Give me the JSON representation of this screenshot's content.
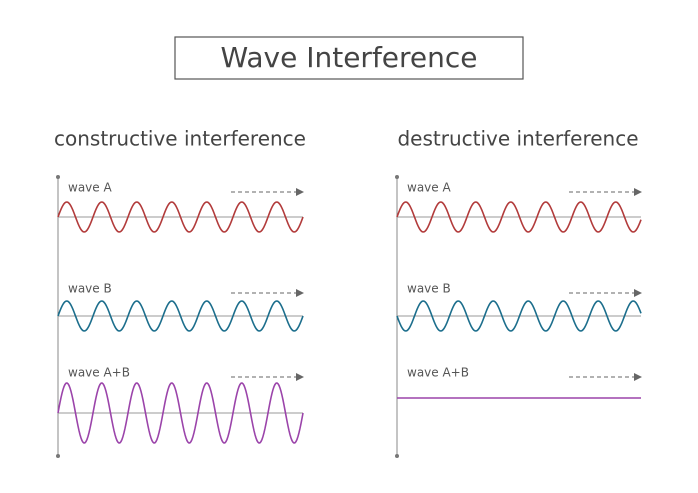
{
  "title": "Wave Interference",
  "panels": [
    {
      "title": "constructive interference",
      "waves": [
        {
          "label": "wave A"
        },
        {
          "label": "wave B"
        },
        {
          "label": "wave A+B"
        }
      ]
    },
    {
      "title": "destructive interference",
      "waves": [
        {
          "label": "wave A"
        },
        {
          "label": "wave B"
        },
        {
          "label": "wave A+B"
        }
      ]
    }
  ]
}
